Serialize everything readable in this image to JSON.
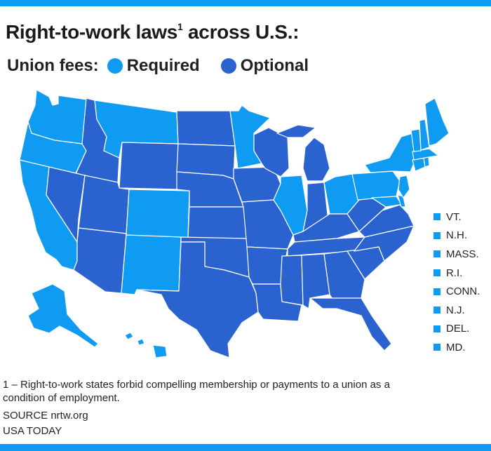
{
  "title": "Right-to-work laws",
  "title_sup": "1",
  "title_tail": " across U.S.:",
  "legend": {
    "label": "Union fees:",
    "required_label": "Required",
    "optional_label": "Optional",
    "required_color": "#0f9bf2",
    "optional_color": "#2a63d0"
  },
  "small_states": [
    "VT.",
    "N.H.",
    "MASS.",
    "R.I.",
    "CONN.",
    "N.J.",
    "DEL.",
    "MD."
  ],
  "footnote": "1 – Right-to-work states forbid compelling membership or payments to a union as a condition of employment.",
  "source": "SOURCE nrtw.org",
  "credit": "USA TODAY"
}
